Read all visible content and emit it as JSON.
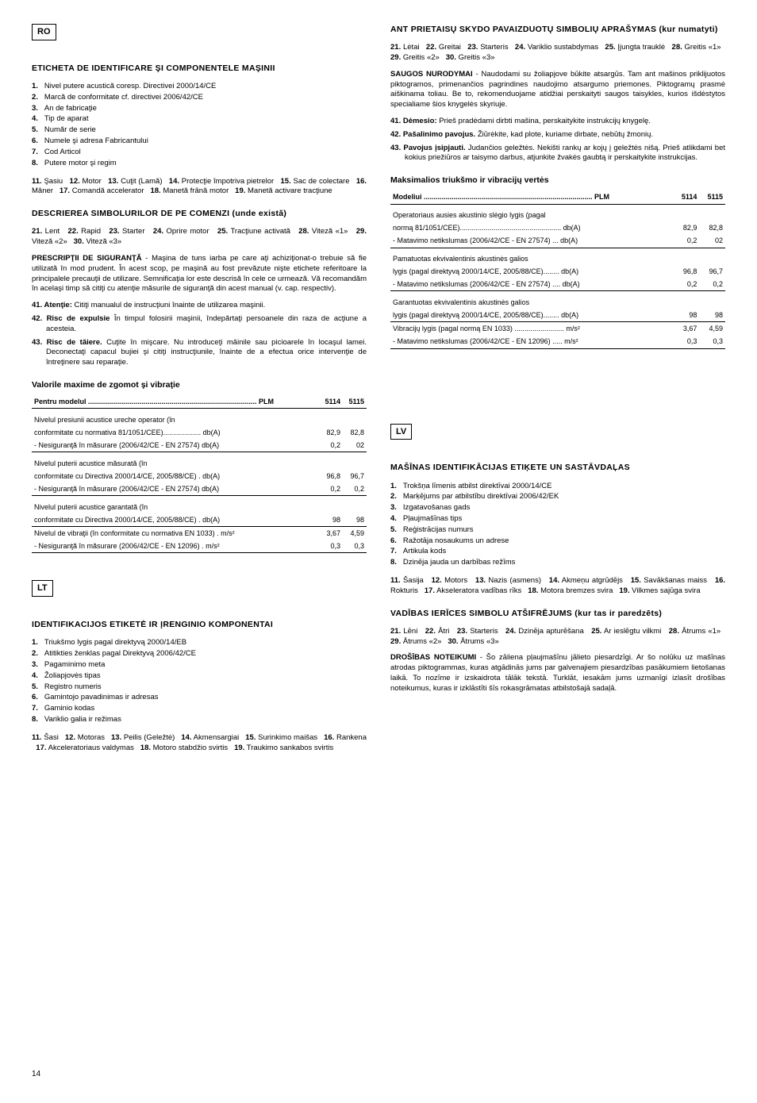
{
  "left": {
    "country": "RO",
    "h1": "ETICHETA DE IDENTIFICARE ŞI COMPONENTELE MAŞINII",
    "list1": [
      "Nivel putere acustică coresp. Directivei 2000/14/CE",
      "Marcă de conformitate cf. directivei 2006/42/CE",
      "An de fabricaţie",
      "Tip de aparat",
      "Număr de serie",
      "Numele şi adresa Fabricantului",
      "Cod Articol",
      "Putere motor şi regim"
    ],
    "run1": [
      {
        "n": "11.",
        "t": "Şasiu"
      },
      {
        "n": "12.",
        "t": "Motor"
      },
      {
        "n": "13.",
        "t": "Cuţit (Lamă)"
      },
      {
        "n": "14.",
        "t": "Protecţie împotriva pietrelor"
      },
      {
        "n": "15.",
        "t": "Sac de colectare"
      },
      {
        "n": "16.",
        "t": "Mâner"
      },
      {
        "n": "17.",
        "t": "Comandă accelerator"
      },
      {
        "n": "18.",
        "t": "Manetă frână motor"
      },
      {
        "n": "19.",
        "t": "Manetă activare tracţiune"
      }
    ],
    "h2": "DESCRIEREA SIMBOLURILOR DE PE COMENZI (unde există)",
    "run2": [
      {
        "n": "21.",
        "t": "Lent"
      },
      {
        "n": "22.",
        "t": "Rapid"
      },
      {
        "n": "23.",
        "t": "Starter"
      },
      {
        "n": "24.",
        "t": "Oprire motor"
      },
      {
        "n": "25.",
        "t": "Tracţiune activată"
      },
      {
        "n": "28.",
        "t": "Viteză «1»"
      },
      {
        "n": "29.",
        "t": "Viteză «2»"
      },
      {
        "n": "30.",
        "t": "Viteză «3»"
      }
    ],
    "safety_title": "PRESCRIPŢII DE SIGURANŢĂ",
    "safety_text": " - Maşina de tuns iarba pe care aţi achiziţionat-o trebuie să fie utilizată în mod prudent. În acest scop, pe maşină au fost prevăzute nişte etichete referitoare la principalele precauţii de utilizare. Semnificaţia lor este descrisă în cele ce urmează. Vă recomandăm în acelaşi timp să citiţi cu atenţie măsurile de siguranţă din acest manual (v. cap. respectiv).",
    "bullets": [
      {
        "n": "41.",
        "h": "Atenţie:",
        "t": " Citiţi manualul de instrucţiuni înainte de utilizarea maşinii."
      },
      {
        "n": "42.",
        "h": "Risc de expulsie",
        "t": " În timpul folosirii maşinii, îndepărtaţi persoanele din raza de acţiune a acesteia."
      },
      {
        "n": "43.",
        "h": "Risc de tăiere.",
        "t": " Cuţite în mişcare. Nu introduceţi mâinile sau picioarele în locaşul lamei. Deconectaţi capacul bujiei şi citiţi instrucţiunile, înainte de a efectua orice intervenţie de întreţinere sau reparaţie."
      }
    ],
    "table_title": "Valorile maxime de zgomot şi vibraţie",
    "table_hdr": {
      "c0": "Pentru modelul",
      "c1": "PLM",
      "c2": "5114",
      "c3": "5115"
    },
    "table": [
      {
        "a": "Nivelul presiunii acustice ureche operator (în",
        "b": "",
        "v1": "",
        "v2": ""
      },
      {
        "a": "conformitate cu normativa 81/1051/CEE)................... db(A)",
        "b": "",
        "v1": "82,9",
        "v2": "82,8"
      },
      {
        "a": "- Nesiguranţă în măsurare (2006/42/CE - EN 27574)  db(A)",
        "b": "",
        "v1": "0,2",
        "v2": "02",
        "sep": true
      },
      {
        "a": "Nivelul puterii acustice măsurată (în",
        "b": "",
        "v1": "",
        "v2": ""
      },
      {
        "a": "conformitate cu Directiva 2000/14/CE, 2005/88/CE) . db(A)",
        "b": "",
        "v1": "96,8",
        "v2": "96,7"
      },
      {
        "a": "- Nesiguranţă în măsurare (2006/42/CE - EN 27574)  db(A)",
        "b": "",
        "v1": "0,2",
        "v2": "0,2",
        "sep": true
      },
      {
        "a": "Nivelul puterii acustice garantată (în",
        "b": "",
        "v1": "",
        "v2": ""
      },
      {
        "a": "conformitate cu Directiva 2000/14/CE, 2005/88/CE) . db(A)",
        "b": "",
        "v1": "98",
        "v2": "98",
        "sep": true
      },
      {
        "a": "Nivelul de vibraţii (în conformitate cu normativa EN 1033) . m/s²",
        "b": "",
        "v1": "3,67",
        "v2": "4,59"
      },
      {
        "a": "- Nesiguranţă în măsurare (2006/42/CE - EN 12096)  . m/s²",
        "b": "",
        "v1": "0,3",
        "v2": "0,3",
        "sep": true
      }
    ],
    "country2": "LT",
    "h3": "IDENTIFIKACIJOS ETIKETĖ IR ĮRENGINIO KOMPONENTAI",
    "list2": [
      "Triukšmo lygis pagal direktyvą 2000/14/EB",
      "Atitikties ženklas pagal Direktyvą 2006/42/CE",
      "Pagaminimo meta",
      "Žoliapjovės tipas",
      "Registro numeris",
      "Gamintojo pavadinimas ir adresas",
      "Gaminio kodas",
      "Variklio galia ir režimas"
    ],
    "run3": [
      {
        "n": "11.",
        "t": "Šasi"
      },
      {
        "n": "12.",
        "t": "Motoras"
      },
      {
        "n": "13.",
        "t": "Peilis (Geležtė)"
      },
      {
        "n": "14.",
        "t": "Akmensargiai"
      },
      {
        "n": "15.",
        "t": "Surinkimo maišas"
      },
      {
        "n": "16.",
        "t": "Rankena"
      },
      {
        "n": "17.",
        "t": "Akceleratoriaus valdymas"
      },
      {
        "n": "18.",
        "t": "Motoro stabdžio svirtis"
      },
      {
        "n": "19.",
        "t": "Traukimo sankabos svirtis"
      }
    ],
    "pagenum": "14"
  },
  "right": {
    "h1": "ANT PRIETAISŲ SKYDO PAVAIZDUOTŲ SIMBOLIŲ APRAŠYMAS (kur numatyti)",
    "run1": [
      {
        "n": "21.",
        "t": "Lėtai"
      },
      {
        "n": "22.",
        "t": "Greitai"
      },
      {
        "n": "23.",
        "t": "Starteris"
      },
      {
        "n": "24.",
        "t": "Variklio sustabdymas"
      },
      {
        "n": "25.",
        "t": "Įjungta trauklė"
      },
      {
        "n": "28.",
        "t": "Greitis «1»"
      },
      {
        "n": "29.",
        "t": "Greitis «2»"
      },
      {
        "n": "30.",
        "t": "Greitis «3»"
      }
    ],
    "safety_title": "SAUGOS NURODYMAI",
    "safety_text": " - Naudodami su žoliapjove būkite atsargūs. Tam ant mašinos priklijuotos piktogramos, primenančios pagrindines naudojimo atsargumo priemones. Piktogramų prasmė aiškinama toliau. Be to, rekomenduojame atidžiai perskaityti saugos taisykles, kurios išdėstytos specialiame šios knygelės skyriuje.",
    "bullets": [
      {
        "n": "41.",
        "h": "Dėmesio:",
        "t": " Prieš pradėdami dirbti mašina, perskaitykite instrukcijų knygelę."
      },
      {
        "n": "42.",
        "h": "Pašalinimo pavojus.",
        "t": " Žiūrėkite, kad plote, kuriame dirbate, nebūtų žmonių."
      },
      {
        "n": "43.",
        "h": "Pavojus įsipjauti.",
        "t": " Judančios geležtės. Nekišti rankų ar kojų į geležtės nišą. Prieš atlikdami bet kokius priežiūros ar taisymo darbus, atjunkite žvakės gaubtą ir perskaitykite instrukcijas."
      }
    ],
    "table_title": "Maksimalios triukšmo ir vibracijų vertės",
    "table_hdr": {
      "c0": "Modeliui",
      "c1": "PLM",
      "c2": "5114",
      "c3": "5115"
    },
    "table": [
      {
        "a": "Operatoriaus ausies akustinio slėgio lygis (pagal",
        "v1": "",
        "v2": ""
      },
      {
        "a": "normą 81/1051/CEE)................................................... db(A)",
        "v1": "82,9",
        "v2": "82,8"
      },
      {
        "a": "- Matavimo netikslumas (2006/42/CE - EN 27574)  ... db(A)",
        "v1": "0,2",
        "v2": "02",
        "sep": true
      },
      {
        "a": "Pamatuotas ekvivalentinis akustinės galios",
        "v1": "",
        "v2": ""
      },
      {
        "a": "lygis (pagal direktyvą 2000/14/CE, 2005/88/CE)........ db(A)",
        "v1": "96,8",
        "v2": "96,7"
      },
      {
        "a": "- Matavimo netikslumas (2006/42/CE - EN 27574) .... db(A)",
        "v1": "0,2",
        "v2": "0,2",
        "sep": true
      },
      {
        "a": "Garantuotas ekvivalentinis akustinės galios",
        "v1": "",
        "v2": ""
      },
      {
        "a": "lygis (pagal direktyvą 2000/14/CE, 2005/88/CE)........ db(A)",
        "v1": "98",
        "v2": "98",
        "sep": true
      },
      {
        "a": "Vibracijų lygis (pagal normą EN 1033)  ......................... m/s²",
        "v1": "3,67",
        "v2": "4,59"
      },
      {
        "a": "- Matavimo netikslumas (2006/42/CE - EN 12096) ..... m/s²",
        "v1": "0,3",
        "v2": "0,3",
        "sep": true
      }
    ],
    "country2": "LV",
    "h2": "MAŠĪNAS IDENTIFIKĀCIJAS ETIĶETE UN SASTĀVDAĻAS",
    "list2": [
      "Trokšņa līmenis atbilst direktīvai 2000/14/CE",
      "Marķējums par atbilstību direktīvai 2006/42/EK",
      "Izgatavošanas gads",
      "Pļaujmašīnas tips",
      "Reģistrācijas numurs",
      "Ražotāja nosaukums un adrese",
      "Artikula kods",
      "Dzinēja jauda un darbības režīms"
    ],
    "run3": [
      {
        "n": "11.",
        "t": "Šasija"
      },
      {
        "n": "12.",
        "t": "Motors"
      },
      {
        "n": "13.",
        "t": "Nazis (asmens)"
      },
      {
        "n": "14.",
        "t": "Akmeņu atgrūdējs"
      },
      {
        "n": "15.",
        "t": "Savākšanas maiss"
      },
      {
        "n": "16.",
        "t": "Rokturis"
      },
      {
        "n": "17.",
        "t": "Akseleratora vadības rīks"
      },
      {
        "n": "18.",
        "t": "Motora bremzes svira"
      },
      {
        "n": "19.",
        "t": "Vilkmes sajūga svira"
      }
    ],
    "h3": "VADĪBAS IERĪCES SIMBOLU ATŠIFRĒJUMS (kur tas ir paredzēts)",
    "run4": [
      {
        "n": "21.",
        "t": "Lēni"
      },
      {
        "n": "22.",
        "t": "Ātri"
      },
      {
        "n": "23.",
        "t": "Starteris"
      },
      {
        "n": "24.",
        "t": "Dzinēja apturēšana"
      },
      {
        "n": "25.",
        "t": "Ar ieslēgtu vilkmi"
      },
      {
        "n": "28.",
        "t": "Ātrums  «1»"
      },
      {
        "n": "29.",
        "t": "Ātrums  «2»"
      },
      {
        "n": "30.",
        "t": "Ātrums  «3»"
      }
    ],
    "safety_title2": "DROŠĪBAS NOTEIKUMI",
    "safety_text2": " - Šo zāliena pļaujmašīnu jālieto piesardzīgi. Ar šo nolūku uz mašīnas atrodas piktogrammas, kuras atgādinās jums par galvenajiem piesardzības pasākumiem lietošanas laikā. To nozīme ir izskaidrota tālāk tekstā. Turklāt, iesakām jums uzmanīgi izlasīt drošības noteikumus, kuras ir izklāstīti šīs rokasgrāmatas atbilstošajā sadaļā."
  }
}
